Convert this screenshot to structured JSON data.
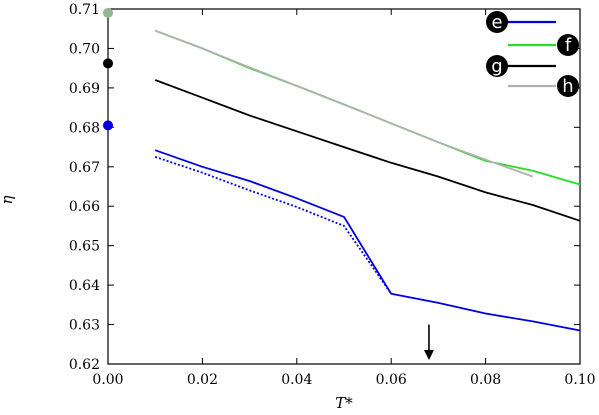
{
  "chart_data": {
    "type": "line",
    "xlabel": "T*",
    "ylabel": "η",
    "xlim": [
      0.0,
      0.1
    ],
    "ylim": [
      0.62,
      0.71
    ],
    "x_ticks": [
      "0.00",
      "0.02",
      "0.04",
      "0.06",
      "0.08",
      "0.10"
    ],
    "y_ticks": [
      "0.62",
      "0.63",
      "0.64",
      "0.65",
      "0.66",
      "0.67",
      "0.68",
      "0.69",
      "0.70",
      "0.71"
    ],
    "grid": false,
    "legend_position": "top-right",
    "series": [
      {
        "name": "e",
        "color": "#0000e0",
        "style": "solid",
        "x": [
          0.01,
          0.02,
          0.03,
          0.04,
          0.05,
          0.06,
          0.07,
          0.08,
          0.09,
          0.1
        ],
        "y": [
          0.6742,
          0.67,
          0.6664,
          0.662,
          0.6573,
          0.6378,
          0.6355,
          0.6328,
          0.6308,
          0.6285
        ]
      },
      {
        "name": "",
        "color": "#0000e0",
        "style": "dotted",
        "x": [
          0.01,
          0.02,
          0.03,
          0.04,
          0.05,
          0.06
        ],
        "y": [
          0.6725,
          0.6685,
          0.664,
          0.6598,
          0.655,
          0.6378
        ]
      },
      {
        "name": "f",
        "color": "#22e022",
        "style": "solid",
        "x": [
          0.01,
          0.02,
          0.03,
          0.04,
          0.05,
          0.06,
          0.07,
          0.08,
          0.09,
          0.1
        ],
        "y": [
          0.7045,
          0.7,
          0.695,
          0.6905,
          0.6858,
          0.681,
          0.6762,
          0.6715,
          0.669,
          0.6655
        ]
      },
      {
        "name": "g",
        "color": "#000000",
        "style": "solid",
        "x": [
          0.01,
          0.02,
          0.03,
          0.04,
          0.05,
          0.06,
          0.07,
          0.08,
          0.09,
          0.1
        ],
        "y": [
          0.692,
          0.6875,
          0.683,
          0.679,
          0.675,
          0.671,
          0.6675,
          0.6635,
          0.6603,
          0.6563
        ]
      },
      {
        "name": "h",
        "color": "#b0b0b0",
        "style": "solid",
        "x": [
          0.01,
          0.02,
          0.03,
          0.04,
          0.05,
          0.06,
          0.07,
          0.08,
          0.09
        ],
        "y": [
          0.7045,
          0.7,
          0.6952,
          0.6905,
          0.6858,
          0.681,
          0.6762,
          0.6718,
          0.6675
        ]
      }
    ],
    "markers": [
      {
        "series": "e",
        "x": 0.0,
        "y": 0.6805,
        "color": "#0000e0"
      },
      {
        "series": "g",
        "x": 0.0,
        "y": 0.6962,
        "color": "#000000"
      },
      {
        "series": "h",
        "x": 0.0,
        "y": 0.709,
        "color": "#90b890"
      }
    ],
    "arrow": {
      "x": 0.068,
      "y_from": 0.63,
      "y_to": 0.621
    }
  }
}
